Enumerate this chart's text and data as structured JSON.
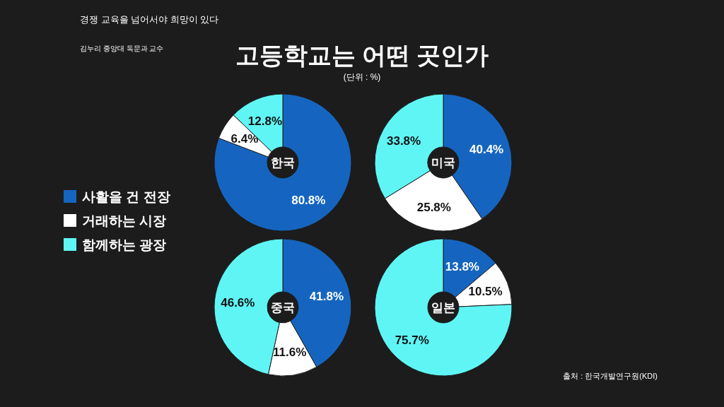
{
  "chart_data": [
    {
      "type": "donut",
      "title": "한국",
      "categories": [
        "사활을 건 전장",
        "거래하는 시장",
        "함께하는 광장"
      ],
      "values": [
        80.8,
        6.4,
        12.8
      ],
      "value_labels": [
        "80.8%",
        "6.4%",
        "12.8%"
      ],
      "colors": [
        "#1565c0",
        "#ffffff",
        "#5ff5f5"
      ],
      "legend": "left",
      "annotations": [
        "고등학교는 어떤 곳인가",
        "(단위 : %)",
        "경쟁 교육을 넘어서야 희망이 있다",
        "김누리 중앙대 독문과 교수"
      ]
    },
    {
      "type": "donut",
      "title": "미국",
      "categories": [
        null,
        null,
        null
      ],
      "values": [
        40.4,
        25.8,
        33.8
      ],
      "value_labels": [
        "40.4%",
        "25.8%",
        "33.8%"
      ],
      "colors": [
        "#1565c0",
        "#ffffff",
        "#5ff5f5"
      ]
    },
    {
      "type": "donut",
      "title": "중국",
      "categories": [
        null,
        null,
        null
      ],
      "values": [
        41.8,
        11.6,
        46.6
      ],
      "value_labels": [
        "41.8%",
        "11.6%",
        "46.6%"
      ],
      "colors": [
        "#1565c0",
        "#ffffff",
        "#5ff5f5"
      ]
    },
    {
      "type": "donut",
      "title": "일본",
      "categories": [
        null,
        null,
        null
      ],
      "values": [
        13.8,
        10.5,
        75.7
      ],
      "value_labels": [
        "13.8%",
        "10.5%",
        "75.7%"
      ],
      "colors": [
        "#1565c0",
        "#ffffff",
        "#5ff5f5"
      ],
      "annotations": [
        "출처 : 한국개발연구원(KDI)"
      ]
    }
  ]
}
